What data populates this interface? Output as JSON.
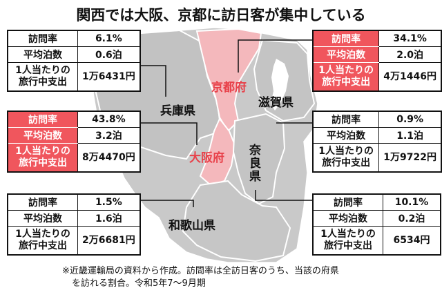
{
  "title": "関西では大阪、京都に訪日客が集中している",
  "labels": {
    "rate": "訪問率",
    "nights": "平均泊数",
    "spend_line1": "1人当たりの",
    "spend_line2": "旅行中支出"
  },
  "prefectures": [
    {
      "id": "hyogo",
      "name": "兵庫県",
      "rate": "6.1%",
      "nights": "0.6泊",
      "spend": "1万6431円"
    },
    {
      "id": "kyoto",
      "name": "京都府",
      "rate": "34.1%",
      "nights": "2.0泊",
      "spend": "4万1446円"
    },
    {
      "id": "osaka",
      "name": "大阪府",
      "rate": "43.8%",
      "nights": "3.2泊",
      "spend": "8万4470円"
    },
    {
      "id": "shiga",
      "name": "滋賀県",
      "rate": "0.9%",
      "nights": "1.1泊",
      "spend": "1万9722円"
    },
    {
      "id": "nara",
      "name": "奈良県",
      "rate": "10.1%",
      "nights": "0.2泊",
      "spend": "6534円"
    },
    {
      "id": "wakayama",
      "name": "和歌山県",
      "rate": "1.5%",
      "nights": "1.6泊",
      "spend": "2万6681円"
    }
  ],
  "note": {
    "line1": "※近畿運輸局の資料から作成。訪問率は全訪日客のうち、当該の府県",
    "line2": "を訪れる割合。令和5年7～9月期"
  },
  "colors": {
    "highlight": "#f0565d",
    "highlight_map": "#f4b8bc",
    "land": "#c9c9c9",
    "water": "#ffffff"
  }
}
